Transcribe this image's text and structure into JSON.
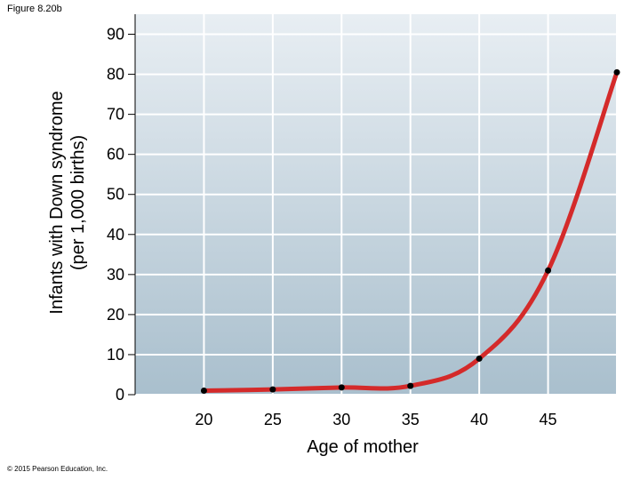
{
  "figure_label": "Figure 8.20b",
  "copyright": "© 2015 Pearson Education, Inc.",
  "colors": {
    "line": "#d42a2a",
    "point": "#000000",
    "plot_bg_top": "#e8eef3",
    "plot_bg_bottom": "#a9bfcd",
    "grid": "#ffffff"
  },
  "chart_data": {
    "type": "line",
    "title": "",
    "xlabel": "Age of mother",
    "ylabel_lines": [
      "Infants with Down syndrome",
      "(per 1,000 births)"
    ],
    "x": [
      20,
      25,
      30,
      35,
      40,
      45,
      50
    ],
    "values": [
      1.0,
      1.3,
      1.8,
      2.2,
      9.0,
      31.0,
      80.5
    ],
    "xlim": [
      15,
      50
    ],
    "ylim": [
      0,
      95
    ],
    "x_ticks": [
      20,
      25,
      30,
      35,
      40,
      45
    ],
    "y_ticks": [
      0,
      10,
      20,
      30,
      40,
      50,
      60,
      70,
      80,
      90
    ],
    "grid": true,
    "legend": "none"
  }
}
